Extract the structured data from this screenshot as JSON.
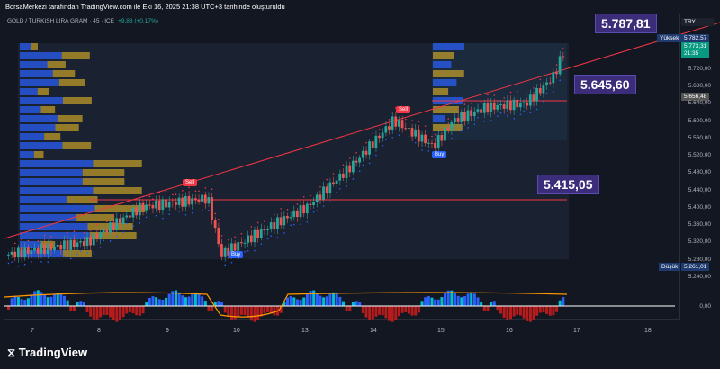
{
  "header": {
    "attribution": "BorsaMerkezi tarafından TradingView.com ile Eki 16, 2025 21:38 UTC+3 tarihinde oluşturuldu",
    "symbol": "GOLD / TURKISH LIRA GRAM · 45 · ICE",
    "change": "+9,88 (+0,17%)"
  },
  "price_scale": {
    "currency": "TRY",
    "high_label": "Yüksek",
    "high": "5.782,57",
    "last": "5.773,31",
    "countdown": "21:35",
    "prev": "5.656,48",
    "low_label": "Düşük",
    "low": "5.261,01",
    "ticks": [
      "5.720,00",
      "5.680,00",
      "5.640,00",
      "5.600,00",
      "5.560,00",
      "5.520,00",
      "5.480,00",
      "5.440,00",
      "5.400,00",
      "5.360,00",
      "5.320,00",
      "5.280,00",
      "5.240,00"
    ],
    "osc_zero": "0,00"
  },
  "annotations": {
    "trend_target": "5.787,81",
    "level_upper": "5.645,60",
    "level_lower": "5.415,05"
  },
  "signals": [
    {
      "label": "Sell"
    },
    {
      "label": "Buy"
    },
    {
      "label": "Sell"
    },
    {
      "label": "Buy"
    }
  ],
  "colors": {
    "up": "#26a69a",
    "down": "#ef5350",
    "trend": "#f23645",
    "tag": "#3b2d7a",
    "last": "#089981"
  },
  "branding": "TradingView",
  "chart_data": {
    "type": "candlestick",
    "x_ticks": [
      "7",
      "8",
      "9",
      "10",
      "13",
      "14",
      "15",
      "16",
      "17",
      "18"
    ],
    "ylim": [
      5240,
      5780
    ],
    "close_path": [
      [
        0,
        5290
      ],
      [
        12,
        5320
      ],
      [
        20,
        5400
      ],
      [
        30,
        5420
      ],
      [
        32,
        5290
      ],
      [
        40,
        5360
      ],
      [
        45,
        5400
      ],
      [
        52,
        5500
      ],
      [
        58,
        5600
      ],
      [
        62,
        5560
      ],
      [
        64,
        5540
      ],
      [
        67,
        5600
      ],
      [
        72,
        5630
      ],
      [
        78,
        5640
      ],
      [
        82,
        5700
      ],
      [
        84,
        5773
      ]
    ]
  }
}
